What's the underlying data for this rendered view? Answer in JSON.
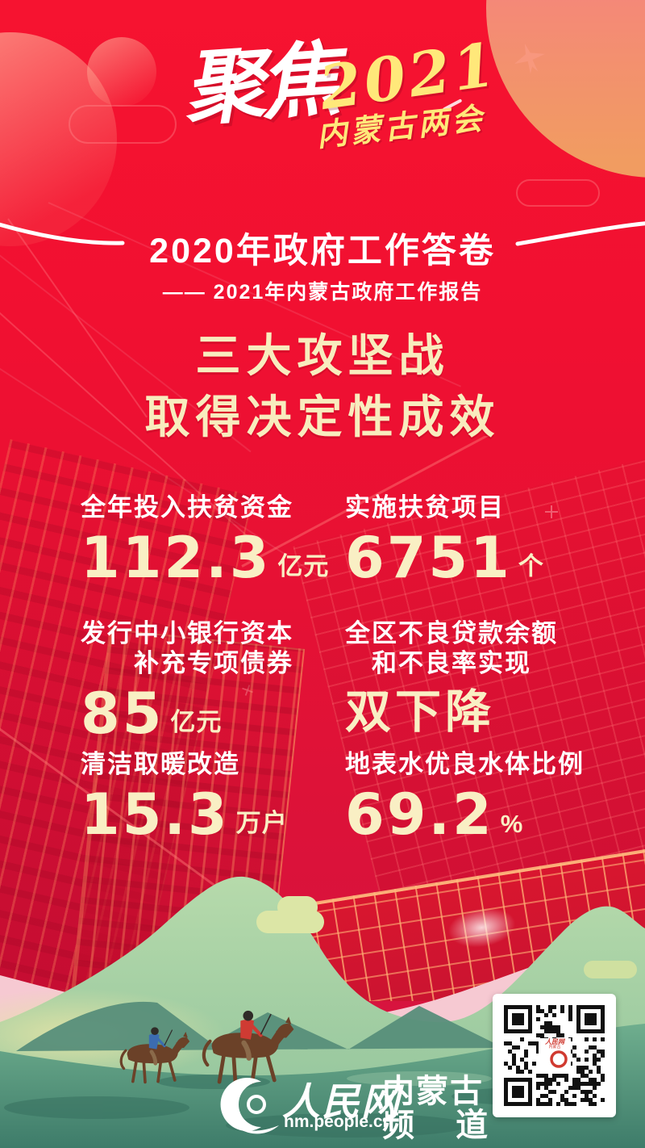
{
  "masthead": {
    "script_word": "聚焦",
    "year": "2021",
    "event": "内蒙古两会"
  },
  "header": {
    "title": "2020年政府工作答卷",
    "subtitle": "—— 2021年内蒙古政府工作报告"
  },
  "headline": {
    "line1": "三大攻坚战",
    "line2": "取得决定性成效"
  },
  "stats": [
    {
      "label_lines": [
        "全年投入扶贫资金"
      ],
      "value": "112.3",
      "unit": "亿元"
    },
    {
      "label_lines": [
        "实施扶贫项目"
      ],
      "value": "6751",
      "unit": "个"
    },
    {
      "label_lines": [
        "发行中小银行资本",
        "补充专项债券"
      ],
      "value": "85",
      "unit": "亿元"
    },
    {
      "label_lines": [
        "全区不良贷款余额",
        "和不良率实现"
      ],
      "value": "双下降",
      "unit": ""
    },
    {
      "label_lines": [
        "清洁取暖改造"
      ],
      "value": "15.3",
      "unit": "万户"
    },
    {
      "label_lines": [
        "地表水优良水体比例"
      ],
      "value": "69.2",
      "unit": "%"
    }
  ],
  "footer": {
    "brand": "人民网",
    "url": "nm.people.cn",
    "channel_line1": "内蒙古",
    "channel_line2": "频 道"
  },
  "colors": {
    "base_red": "#F2102F",
    "cream": "#F8ECBE",
    "script_yellow": "#FFE87A",
    "white": "#FFFFFF",
    "hill_green": "#A9D2A3",
    "deep_green": "#3F7C6A",
    "ribbon_pink": "#F6C9D2",
    "sun_orange": "#F19C61",
    "logo_red": "#D03A30"
  }
}
